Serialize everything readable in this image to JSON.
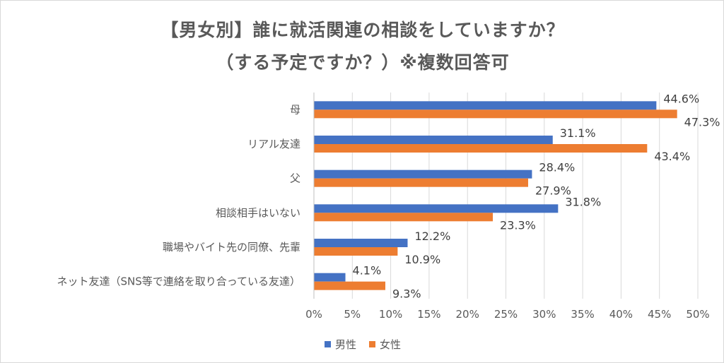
{
  "chart_data": {
    "type": "bar",
    "orientation": "horizontal",
    "title_line1": "【男女別】誰に就活関連の相談をしていますか？",
    "title_line2": "（する予定ですか？）※複数回答可",
    "categories": [
      "母",
      "リアル友達",
      "父",
      "相談相手はいない",
      "職場やバイト先の同僚、先輩",
      "ネット友達（SNS等で連絡を取り合っている友達）"
    ],
    "series": [
      {
        "name": "男性",
        "color": "#4472c4",
        "values": [
          44.6,
          31.1,
          28.4,
          31.8,
          12.2,
          4.1
        ]
      },
      {
        "name": "女性",
        "color": "#ed7d31",
        "values": [
          47.3,
          43.4,
          27.9,
          23.3,
          10.9,
          9.3
        ]
      }
    ],
    "xlim": [
      0,
      50
    ],
    "xticks": [
      "0%",
      "5%",
      "10%",
      "15%",
      "20%",
      "25%",
      "30%",
      "35%",
      "40%",
      "45%",
      "50%"
    ],
    "value_suffix": "%",
    "grid": true,
    "legend_position": "bottom"
  }
}
